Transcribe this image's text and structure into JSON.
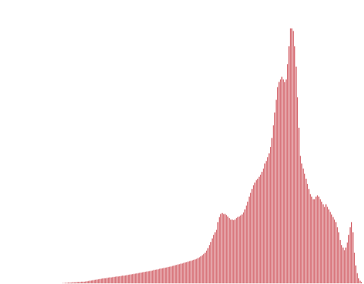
{
  "chart_data": {
    "type": "bar",
    "title": "",
    "xlabel": "",
    "ylabel": "",
    "grid": false,
    "legend": "none",
    "bar_color": "#c0202a",
    "background": "#ffffff",
    "ylim": [
      0,
      1
    ],
    "x": [
      0,
      1,
      2,
      3,
      4,
      5,
      6,
      7,
      8,
      9,
      10,
      11,
      12,
      13,
      14,
      15,
      16,
      17,
      18,
      19,
      20,
      21,
      22,
      23,
      24,
      25,
      26,
      27,
      28,
      29,
      30,
      31,
      32,
      33,
      34,
      35,
      36,
      37,
      38,
      39,
      40,
      41,
      42,
      43,
      44,
      45,
      46,
      47,
      48,
      49,
      50,
      51,
      52,
      53,
      54,
      55,
      56,
      57,
      58,
      59,
      60,
      61,
      62,
      63,
      64,
      65,
      66,
      67,
      68,
      69,
      70,
      71,
      72,
      73,
      74,
      75,
      76,
      77,
      78,
      79,
      80,
      81,
      82,
      83,
      84,
      85,
      86,
      87,
      88,
      89,
      90,
      91,
      92,
      93,
      94,
      95,
      96,
      97,
      98,
      99,
      100,
      101,
      102,
      103,
      104,
      105,
      106,
      107,
      108,
      109,
      110,
      111,
      112,
      113,
      114,
      115,
      116,
      117,
      118,
      119,
      120,
      121,
      122,
      123,
      124,
      125,
      126,
      127,
      128,
      129,
      130,
      131,
      132,
      133,
      134,
      135,
      136,
      137,
      138,
      139,
      140,
      141,
      142,
      143,
      144,
      145,
      146,
      147,
      148,
      149,
      150,
      151,
      152,
      153,
      154,
      155,
      156,
      157,
      158,
      159,
      160,
      161,
      162,
      163,
      164,
      165,
      166,
      167,
      168,
      169,
      170,
      171,
      172,
      173,
      174,
      175,
      176,
      177,
      178,
      179,
      180,
      181,
      182,
      183,
      184,
      185,
      186,
      187,
      188,
      189,
      190,
      191,
      192,
      193,
      194,
      195,
      196,
      197,
      198,
      199,
      200,
      201,
      202,
      203,
      204,
      205,
      206,
      207,
      208,
      209,
      210,
      211,
      212,
      213,
      214,
      215,
      216,
      217,
      218,
      219,
      220,
      221,
      222,
      223,
      224,
      225,
      226,
      227,
      228,
      229,
      230,
      231,
      232,
      233,
      234,
      235,
      236,
      237,
      238,
      239,
      240,
      241,
      242,
      243,
      244,
      245,
      246,
      247,
      248,
      249,
      250,
      251,
      252,
      253,
      254,
      255
    ],
    "values": [
      0.0,
      0.0,
      0.0,
      0.0,
      0.0,
      0.0,
      0.0,
      0.0,
      0.0,
      0.0,
      0.0,
      0.0,
      0.0,
      0.0,
      0.0,
      0.0,
      0.0,
      0.0,
      0.0,
      0.0,
      0.0,
      0.0,
      0.0,
      0.0,
      0.0,
      0.0,
      0.0,
      0.0,
      0.0,
      0.0,
      0.0,
      0.0,
      0.0,
      0.0,
      0.0,
      0.0,
      0.0,
      0.0,
      0.0,
      0.0,
      0.0,
      0.0,
      0.0,
      0.0,
      0.001,
      0.001,
      0.002,
      0.002,
      0.003,
      0.003,
      0.003,
      0.004,
      0.004,
      0.004,
      0.005,
      0.005,
      0.005,
      0.006,
      0.006,
      0.006,
      0.007,
      0.008,
      0.009,
      0.01,
      0.011,
      0.012,
      0.013,
      0.014,
      0.015,
      0.016,
      0.017,
      0.018,
      0.019,
      0.02,
      0.02,
      0.021,
      0.022,
      0.023,
      0.023,
      0.024,
      0.025,
      0.026,
      0.027,
      0.027,
      0.028,
      0.029,
      0.03,
      0.03,
      0.031,
      0.032,
      0.033,
      0.034,
      0.035,
      0.036,
      0.037,
      0.038,
      0.039,
      0.04,
      0.041,
      0.042,
      0.043,
      0.044,
      0.045,
      0.046,
      0.047,
      0.048,
      0.049,
      0.05,
      0.052,
      0.053,
      0.054,
      0.055,
      0.057,
      0.058,
      0.059,
      0.06,
      0.061,
      0.062,
      0.064,
      0.065,
      0.066,
      0.068,
      0.069,
      0.071,
      0.072,
      0.074,
      0.075,
      0.077,
      0.078,
      0.08,
      0.082,
      0.083,
      0.085,
      0.087,
      0.088,
      0.09,
      0.092,
      0.094,
      0.096,
      0.099,
      0.102,
      0.106,
      0.11,
      0.115,
      0.12,
      0.128,
      0.138,
      0.15,
      0.162,
      0.176,
      0.19,
      0.2,
      0.21,
      0.24,
      0.26,
      0.272,
      0.276,
      0.272,
      0.272,
      0.268,
      0.262,
      0.256,
      0.25,
      0.25,
      0.248,
      0.25,
      0.256,
      0.26,
      0.262,
      0.266,
      0.27,
      0.278,
      0.29,
      0.305,
      0.32,
      0.34,
      0.355,
      0.37,
      0.385,
      0.395,
      0.405,
      0.41,
      0.418,
      0.426,
      0.437,
      0.45,
      0.47,
      0.48,
      0.495,
      0.51,
      0.535,
      0.57,
      0.62,
      0.67,
      0.72,
      0.77,
      0.79,
      0.8,
      0.81,
      0.8,
      0.79,
      0.8,
      0.86,
      0.93,
      1.0,
      1.0,
      0.99,
      0.93,
      0.85,
      0.73,
      0.61,
      0.5,
      0.47,
      0.45,
      0.43,
      0.41,
      0.39,
      0.37,
      0.35,
      0.34,
      0.33,
      0.33,
      0.34,
      0.345,
      0.34,
      0.33,
      0.32,
      0.31,
      0.3,
      0.31,
      0.3,
      0.29,
      0.28,
      0.27,
      0.26,
      0.25,
      0.24,
      0.22,
      0.2,
      0.17,
      0.15,
      0.14,
      0.13,
      0.14,
      0.16,
      0.19,
      0.22,
      0.24,
      0.2,
      0.12,
      0.07,
      0.04,
      0.02,
      0.01,
      0.005,
      0.0
    ]
  }
}
